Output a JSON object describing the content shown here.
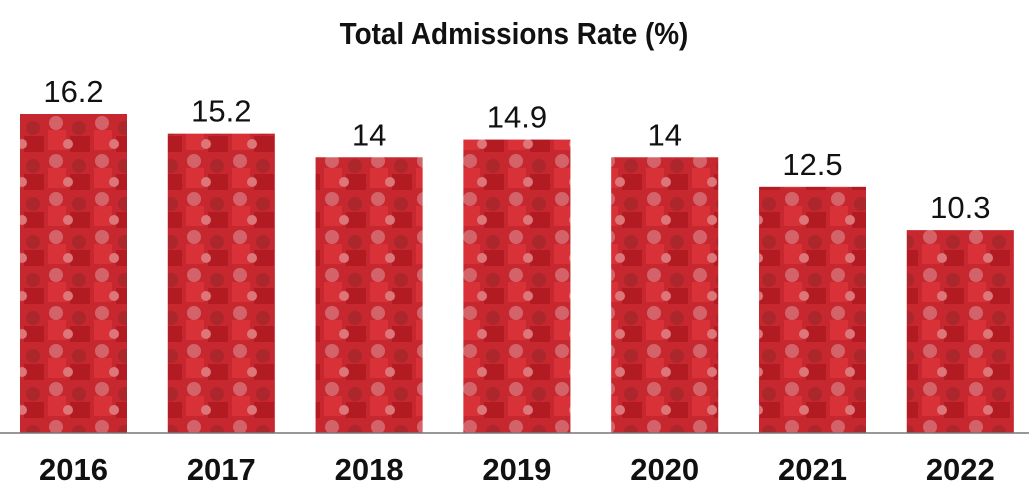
{
  "chart_data": {
    "type": "bar",
    "title": "Total Admissions Rate (%)",
    "categories": [
      "2016",
      "2017",
      "2018",
      "2019",
      "2020",
      "2021",
      "2022"
    ],
    "values": [
      16.2,
      15.2,
      14,
      14.9,
      14,
      12.5,
      10.3
    ],
    "data_labels": [
      "16.2",
      "15.2",
      "14",
      "14.9",
      "14",
      "12.5",
      "10.3"
    ],
    "xlabel": "",
    "ylabel": "",
    "ylim": [
      0,
      16.2
    ],
    "grid": false,
    "legend": "none",
    "colors": {
      "bar": "#c8232b",
      "bar_dark": "#8e1419",
      "bar_light": "#e0565b",
      "axis": "#777777",
      "text": "#111111"
    }
  }
}
